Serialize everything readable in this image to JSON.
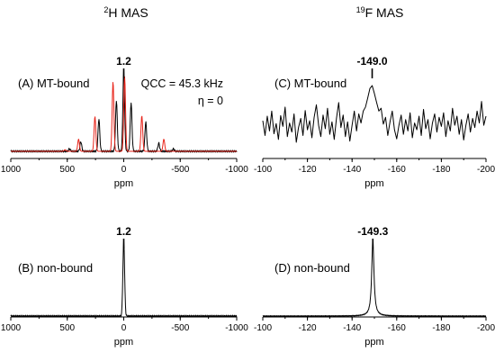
{
  "figure": {
    "column_titles": [
      {
        "sup": "2",
        "rest": "H MAS"
      },
      {
        "sup": "19",
        "rest": "F MAS"
      }
    ]
  },
  "colors": {
    "experimental": "#000000",
    "simulation": "#e8251b"
  },
  "chart_data": [
    {
      "id": "A",
      "type": "line",
      "panel_label": "(A) MT-bound",
      "peak_label": "1.2",
      "annotation_lines": [
        "QCC = 45.3 kHz",
        "η = 0"
      ],
      "xlabel": "ppm",
      "xlim": [
        1000,
        -1000
      ],
      "x_reversed": true,
      "x_ticks": [
        1000,
        500,
        0,
        -500,
        -1000
      ],
      "series": [
        {
          "role": "experimental",
          "sticks": [
            [
              0,
              1.0
            ],
            [
              65,
              0.63
            ],
            [
              -65,
              0.6
            ],
            [
              220,
              0.4
            ],
            [
              -195,
              0.36
            ],
            [
              380,
              0.12
            ],
            [
              -310,
              0.1
            ],
            [
              480,
              0.03
            ],
            [
              -440,
              0.03
            ]
          ]
        },
        {
          "role": "simulation",
          "sticks": [
            [
              -8,
              0.92
            ],
            [
              95,
              0.86
            ],
            [
              255,
              0.43
            ],
            [
              -160,
              0.44
            ],
            [
              400,
              0.15
            ],
            [
              -355,
              0.15
            ],
            [
              520,
              0.02
            ]
          ]
        }
      ]
    },
    {
      "id": "B",
      "type": "line",
      "panel_label": "(B) non-bound",
      "peak_label": "1.2",
      "xlabel": "ppm",
      "xlim": [
        1000,
        -1000
      ],
      "x_reversed": true,
      "x_ticks": [
        1000,
        500,
        0,
        -500,
        -1000
      ],
      "series": [
        {
          "role": "experimental",
          "sticks": [
            [
              0,
              1.0
            ]
          ]
        }
      ]
    },
    {
      "id": "C",
      "type": "line",
      "panel_label": "(C) MT-bound",
      "peak_label": "-149.0",
      "xlabel": "ppm",
      "xlim": [
        -100,
        -200
      ],
      "x_reversed": true,
      "x_ticks": [
        -100,
        -120,
        -140,
        -160,
        -180,
        -200
      ],
      "series": [
        {
          "role": "experimental",
          "points": [
            [
              -100,
              0.38
            ],
            [
              -101,
              0.12
            ],
            [
              -102,
              0.46
            ],
            [
              -103,
              0.2
            ],
            [
              -104,
              0.55
            ],
            [
              -105,
              0.15
            ],
            [
              -106,
              0.33
            ],
            [
              -107,
              0.05
            ],
            [
              -108,
              0.47
            ],
            [
              -109,
              0.28
            ],
            [
              -110,
              0.62
            ],
            [
              -111,
              0.1
            ],
            [
              -112,
              0.34
            ],
            [
              -113,
              0.18
            ],
            [
              -114,
              0.5
            ],
            [
              -115,
              0.0
            ],
            [
              -116,
              0.26
            ],
            [
              -117,
              0.42
            ],
            [
              -118,
              0.12
            ],
            [
              -119,
              0.56
            ],
            [
              -120,
              0.22
            ],
            [
              -121,
              0.38
            ],
            [
              -122,
              0.08
            ],
            [
              -123,
              0.44
            ],
            [
              -124,
              0.66
            ],
            [
              -125,
              0.3
            ],
            [
              -126,
              0.1
            ],
            [
              -127,
              0.48
            ],
            [
              -128,
              0.24
            ],
            [
              -129,
              0.6
            ],
            [
              -130,
              0.14
            ],
            [
              -131,
              0.36
            ],
            [
              -132,
              0.05
            ],
            [
              -133,
              0.42
            ],
            [
              -134,
              0.7
            ],
            [
              -135,
              0.26
            ],
            [
              -136,
              0.48
            ],
            [
              -137,
              0.1
            ],
            [
              -138,
              0.36
            ],
            [
              -139,
              0.02
            ],
            [
              -140,
              0.3
            ],
            [
              -141,
              0.55
            ],
            [
              -142,
              0.2
            ],
            [
              -143,
              0.5
            ],
            [
              -144,
              0.34
            ],
            [
              -145,
              0.55
            ],
            [
              -146,
              0.62
            ],
            [
              -147,
              0.78
            ],
            [
              -148,
              0.95
            ],
            [
              -149,
              1.0
            ],
            [
              -150,
              0.86
            ],
            [
              -151,
              0.7
            ],
            [
              -152,
              0.55
            ],
            [
              -153,
              0.6
            ],
            [
              -154,
              0.32
            ],
            [
              -155,
              0.44
            ],
            [
              -156,
              0.12
            ],
            [
              -157,
              0.36
            ],
            [
              -158,
              0.55
            ],
            [
              -159,
              0.22
            ],
            [
              -160,
              0.06
            ],
            [
              -161,
              0.3
            ],
            [
              -162,
              0.48
            ],
            [
              -163,
              0.14
            ],
            [
              -164,
              0.4
            ],
            [
              -165,
              0.2
            ],
            [
              -166,
              0.52
            ],
            [
              -167,
              0.08
            ],
            [
              -168,
              0.34
            ],
            [
              -169,
              0.22
            ],
            [
              -170,
              0.46
            ],
            [
              -171,
              0.12
            ],
            [
              -172,
              0.58
            ],
            [
              -173,
              0.24
            ],
            [
              -174,
              0.4
            ],
            [
              -175,
              0.06
            ],
            [
              -176,
              0.34
            ],
            [
              -177,
              0.5
            ],
            [
              -178,
              0.18
            ],
            [
              -179,
              0.44
            ],
            [
              -180,
              0.28
            ],
            [
              -181,
              0.52
            ],
            [
              -182,
              0.1
            ],
            [
              -183,
              0.38
            ],
            [
              -184,
              0.2
            ],
            [
              -185,
              0.6
            ],
            [
              -186,
              0.3
            ],
            [
              -187,
              0.46
            ],
            [
              -188,
              0.14
            ],
            [
              -189,
              0.4
            ],
            [
              -190,
              0.04
            ],
            [
              -191,
              0.3
            ],
            [
              -192,
              0.5
            ],
            [
              -193,
              0.18
            ],
            [
              -194,
              0.42
            ],
            [
              -195,
              0.26
            ],
            [
              -196,
              0.55
            ],
            [
              -197,
              0.34
            ],
            [
              -198,
              0.72
            ],
            [
              -199,
              0.3
            ],
            [
              -200,
              0.46
            ]
          ]
        }
      ]
    },
    {
      "id": "D",
      "type": "line",
      "panel_label": "(D) non-bound",
      "peak_label": "-149.3",
      "xlabel": "ppm",
      "xlim": [
        -100,
        -200
      ],
      "x_reversed": true,
      "x_ticks": [
        -100,
        -120,
        -140,
        -160,
        -180,
        -200
      ],
      "series": [
        {
          "role": "experimental",
          "lorentzian": {
            "center": -149.3,
            "width": 0.6,
            "height": 1.0
          }
        }
      ]
    }
  ]
}
